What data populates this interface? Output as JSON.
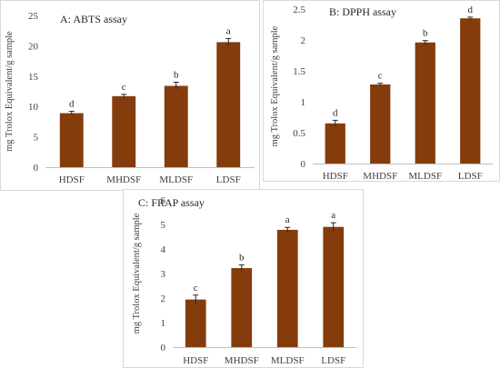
{
  "colors": {
    "bar": "#843c0c"
  },
  "chart_data": [
    {
      "type": "bar",
      "title": "A: ABTS assay",
      "ylabel": "mg Trolox Equivalent/g sample",
      "xlabel": "",
      "categories": [
        "HDSF",
        "MHDSF",
        "MLDSF",
        "LDSF"
      ],
      "values": [
        8.9,
        11.7,
        13.4,
        20.6
      ],
      "errors": [
        0.3,
        0.3,
        0.6,
        0.6
      ],
      "labels": [
        "d",
        "c",
        "b",
        "a"
      ],
      "ylim": [
        0,
        25
      ],
      "yticks": [
        0,
        5,
        10,
        15,
        20,
        25
      ],
      "grid": false
    },
    {
      "type": "bar",
      "title": "B: DPPH assay",
      "ylabel": "mg Trolox Equivalent/g sample",
      "xlabel": "",
      "categories": [
        "HDSF",
        "MHDSF",
        "MLDSF",
        "LDSF"
      ],
      "values": [
        0.65,
        1.28,
        1.96,
        2.35
      ],
      "errors": [
        0.05,
        0.02,
        0.03,
        0.02
      ],
      "labels": [
        "d",
        "c",
        "b",
        "d"
      ],
      "ylim": [
        0,
        2.5
      ],
      "yticks": [
        0,
        0.5,
        1,
        1.5,
        2,
        2.5
      ],
      "grid": false
    },
    {
      "type": "bar",
      "title": "C: FRAP assay",
      "ylabel": "mg Trolox Equivalent/g sample",
      "xlabel": "",
      "categories": [
        "HDSF",
        "MHDSF",
        "MLDSF",
        "LDSF"
      ],
      "values": [
        1.94,
        3.22,
        4.78,
        4.9
      ],
      "errors": [
        0.18,
        0.13,
        0.1,
        0.17
      ],
      "labels": [
        "c",
        "b",
        "a",
        "a"
      ],
      "ylim": [
        0,
        6
      ],
      "yticks": [
        0,
        1,
        2,
        3,
        4,
        5,
        6
      ],
      "grid": false
    }
  ]
}
